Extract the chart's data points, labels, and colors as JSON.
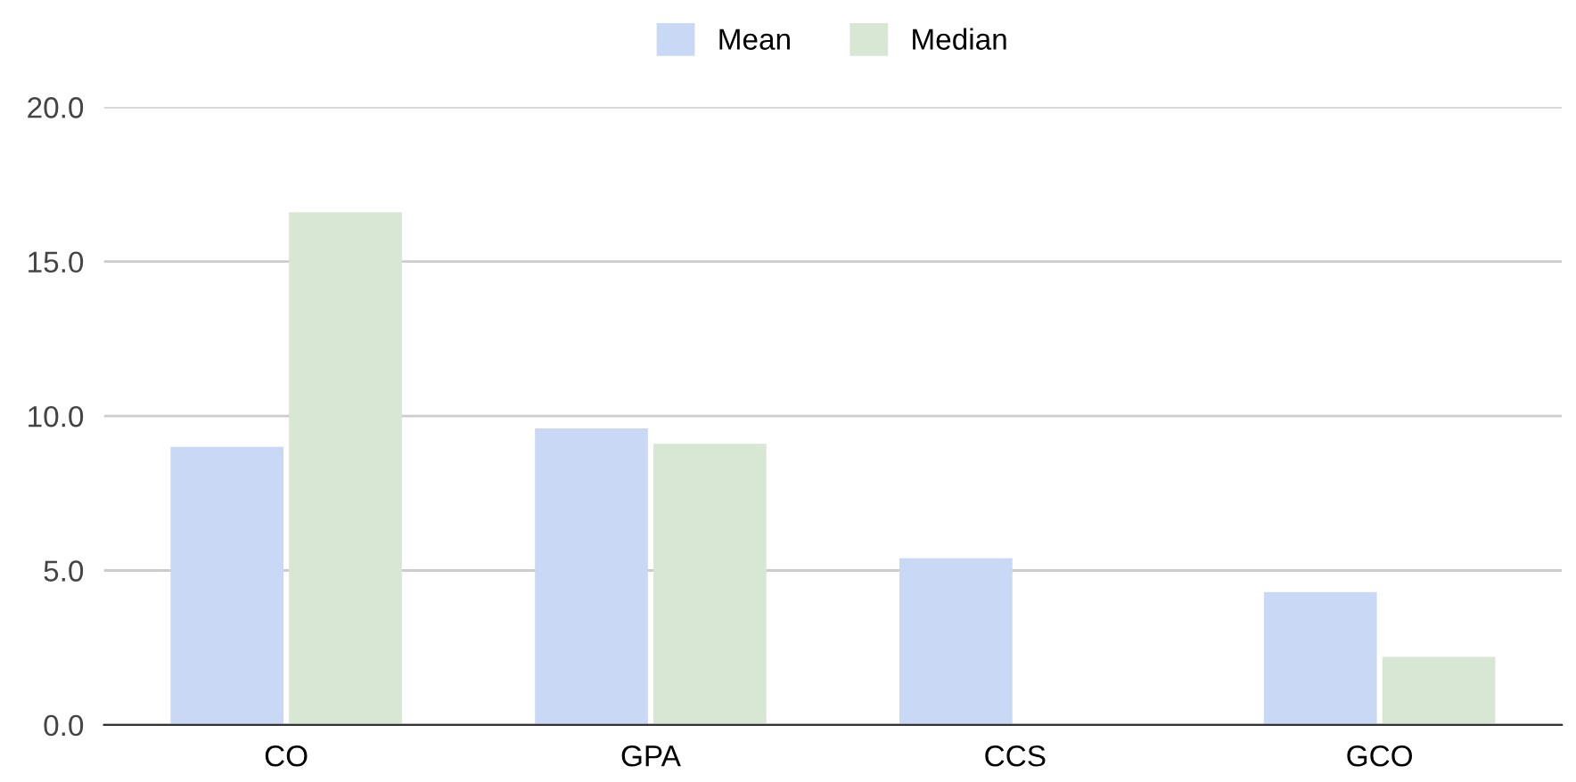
{
  "chart_data": {
    "type": "bar",
    "categories": [
      "CO",
      "GPA",
      "CCS",
      "GCO"
    ],
    "series": [
      {
        "name": "Mean",
        "color": "#c9d8f5",
        "values": [
          9.0,
          9.6,
          5.4,
          4.3
        ]
      },
      {
        "name": "Median",
        "color": "#d7e7d4",
        "values": [
          16.6,
          9.1,
          0,
          2.2
        ]
      }
    ],
    "ylim": [
      0,
      20
    ],
    "yticks": [
      {
        "value": 0,
        "label": "0.0"
      },
      {
        "value": 5,
        "label": "5.0"
      },
      {
        "value": 10,
        "label": "10.0"
      },
      {
        "value": 15,
        "label": "15.0"
      },
      {
        "value": 20,
        "label": "20.0"
      }
    ],
    "grid": "y",
    "legend": "top"
  }
}
